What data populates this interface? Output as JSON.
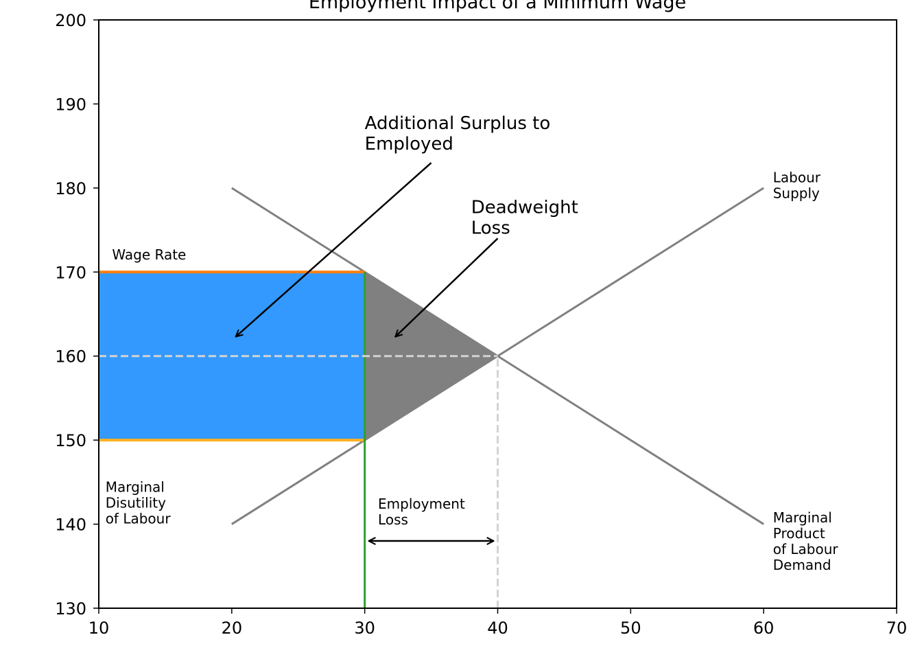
{
  "chart_data": {
    "type": "line",
    "title": "Employment Impact of a Minimum Wage",
    "xlabel": "",
    "ylabel": "",
    "xlim": [
      10,
      70
    ],
    "ylim": [
      130,
      200
    ],
    "xticks": [
      10,
      20,
      30,
      40,
      50,
      60,
      70
    ],
    "yticks": [
      130,
      140,
      150,
      160,
      170,
      180,
      190,
      200
    ],
    "grid": false,
    "series": [
      {
        "name": "Labour Supply",
        "color": "#808080",
        "points": [
          [
            20,
            140
          ],
          [
            60,
            180
          ]
        ]
      },
      {
        "name": "Marginal Product of Labour Demand",
        "color": "#808080",
        "points": [
          [
            20,
            180
          ],
          [
            60,
            140
          ]
        ]
      }
    ],
    "curve_labels": [
      {
        "key": "supply",
        "lines": [
          "Labour",
          "Supply"
        ],
        "x": 60.7,
        "y": 182
      },
      {
        "key": "demand",
        "lines": [
          "Marginal",
          "Product",
          "of Labour",
          "Demand"
        ],
        "x": 60.7,
        "y": 141.5
      }
    ],
    "wage_lines": [
      {
        "key": "wage-rate",
        "y": 170,
        "x": [
          10,
          30
        ],
        "color": "#ff7f0e",
        "label": "Wage Rate",
        "label_x": 11,
        "label_y": 171
      },
      {
        "key": "marginal-disutility",
        "y": 150,
        "x": [
          10,
          30
        ],
        "color": "#ffb020",
        "lines": [
          "Marginal",
          "Disutility",
          "of Labour"
        ],
        "label_x": 10.5,
        "label_y": 144.5
      }
    ],
    "surplus_rect": {
      "x": [
        10,
        30
      ],
      "y": [
        150,
        170
      ],
      "color": "#3399ff"
    },
    "deadweight_triangle": {
      "points": [
        [
          30,
          170
        ],
        [
          40,
          160
        ],
        [
          30,
          150
        ]
      ],
      "color": "#808080"
    },
    "employment_line": {
      "x": 30,
      "y": [
        130,
        170
      ],
      "color": "#2ca02c"
    },
    "equilibrium": {
      "x": 40,
      "y": 160,
      "color": "#d3d3d3"
    },
    "annotations": [
      {
        "key": "additional-surplus",
        "lines": [
          "Additional Surplus to",
          "Employed"
        ],
        "text_x": 30,
        "text_y": 187.5,
        "from": [
          35,
          183
        ],
        "to": [
          20.3,
          162.3
        ],
        "size": "large"
      },
      {
        "key": "deadweight-loss",
        "lines": [
          "Deadweight",
          "Loss"
        ],
        "text_x": 38,
        "text_y": 177.5,
        "from": [
          40,
          174
        ],
        "to": [
          32.3,
          162.3
        ],
        "size": "large"
      },
      {
        "key": "employment-loss",
        "lines": [
          "Employment",
          "Loss"
        ],
        "text_x": 31,
        "text_y": 142.5,
        "from": [
          30.3,
          138
        ],
        "to": [
          39.7,
          138
        ],
        "size": "small",
        "double": true
      }
    ]
  }
}
